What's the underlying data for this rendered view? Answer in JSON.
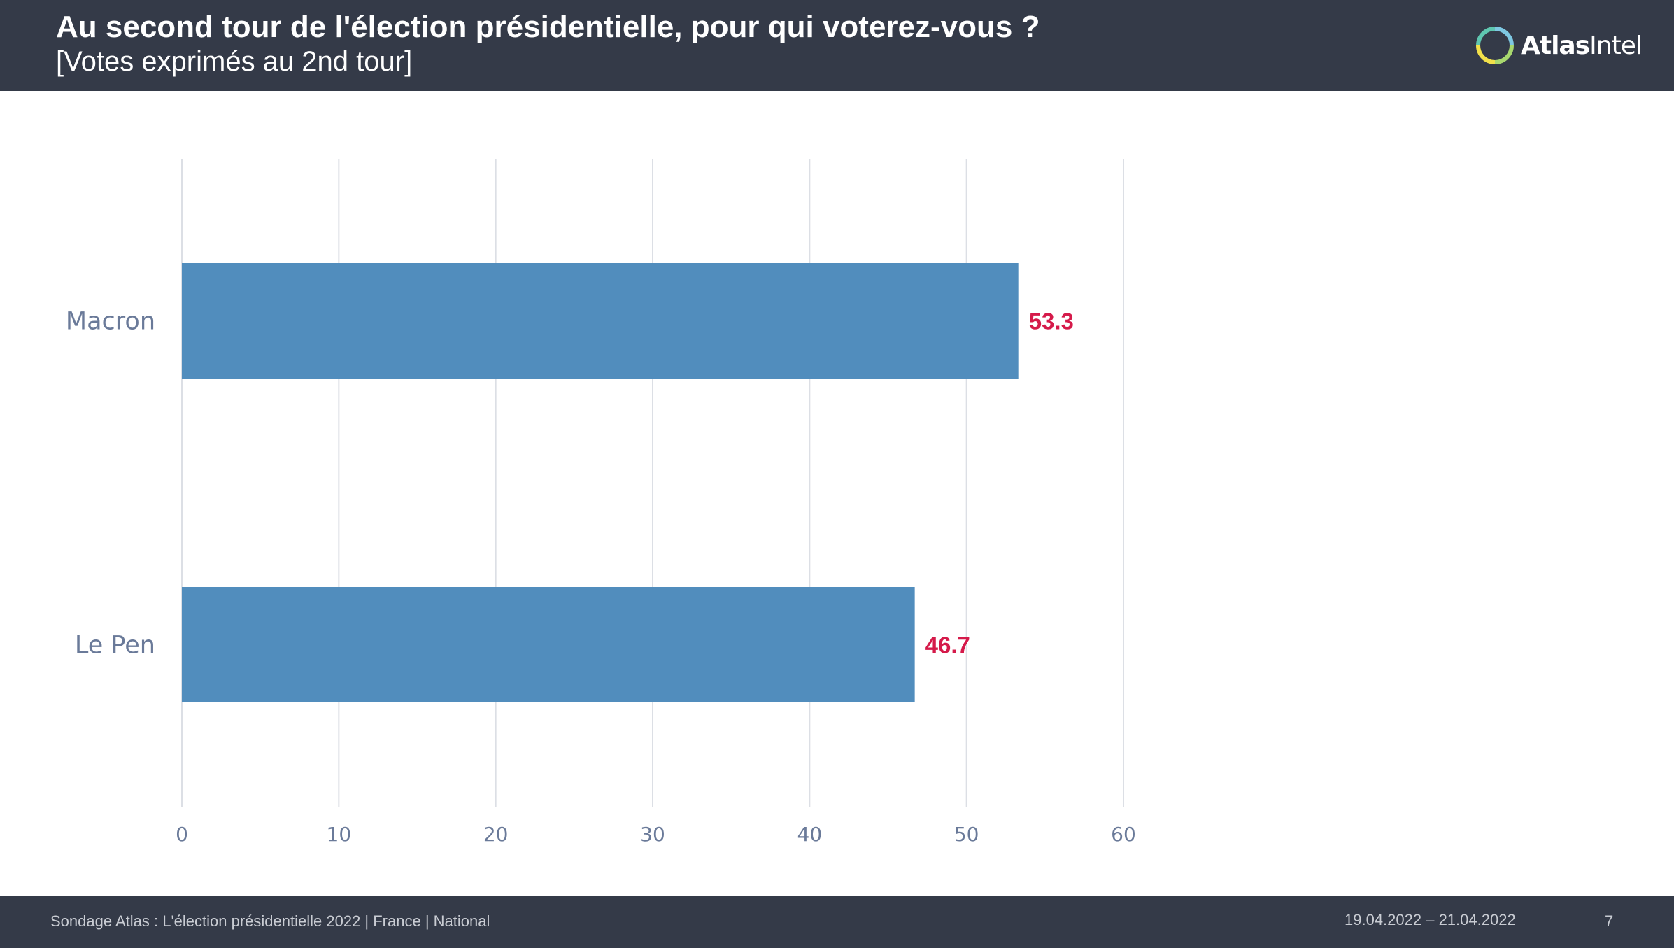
{
  "header": {
    "title": "Au second tour de l'élection présidentielle, pour qui voterez-vous ?",
    "subtitle": "[Votes exprimés au 2nd tour]",
    "logo": {
      "text_bold": "Atlas",
      "text_regular": "Intel",
      "icon": "atlasintel-logo-icon"
    }
  },
  "chart_data": {
    "type": "bar",
    "orientation": "horizontal",
    "categories": [
      "Macron",
      "Le Pen"
    ],
    "values": [
      53.3,
      46.7
    ],
    "data_labels": [
      "53.3",
      "46.7"
    ],
    "xticks": [
      "0",
      "10",
      "20",
      "30",
      "40",
      "50",
      "60"
    ],
    "xlim": [
      0,
      60
    ],
    "grid": true,
    "colors": {
      "bar": "#518dbd",
      "value_label": "#d51a4a",
      "grid": "#dcdfe5",
      "axis_text": "#6a7a99"
    }
  },
  "footer": {
    "source": "Sondage Atlas : L'élection présidentielle 2022 | France | National",
    "date_range": "19.04.2022 – 21.04.2022",
    "page": "7"
  },
  "colors": {
    "header_bg": "#343a48",
    "footer_bg": "#343a48"
  }
}
